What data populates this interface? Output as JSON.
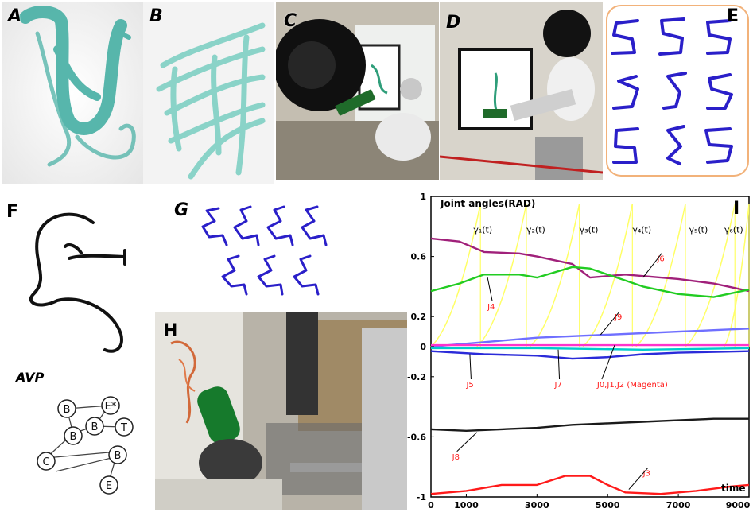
{
  "panels": {
    "a": "A",
    "b": "B",
    "c": "C",
    "d": "D",
    "e": "E",
    "f": "F",
    "g": "G",
    "h": "H",
    "i": "I"
  },
  "avp": {
    "title": "AVP",
    "nodes": [
      "B",
      "E*",
      "B",
      "T",
      "B",
      "C",
      "B",
      "E"
    ]
  },
  "colors": {
    "stroke_teal": "#4fb3a8",
    "stroke_blue": "#2a1fc9",
    "e_border": "#f2b27a",
    "magenta": "#a0207a",
    "green": "#22cc22",
    "black": "#1a1a1a",
    "red": "#ff1a1a",
    "yellow": "#ffff66",
    "light_blue": "#6f6fff",
    "blue": "#2b2bd9",
    "cyan": "#00cccc",
    "pink": "#ff33cc"
  },
  "chart_data": {
    "type": "line",
    "title": "Joint angles(RAD)",
    "xlabel": "time",
    "ylabel": "",
    "xlim": [
      0,
      9000
    ],
    "ylim": [
      -1,
      1
    ],
    "x_ticks": [
      "0",
      "1000",
      "3000",
      "5000",
      "7000",
      "9000"
    ],
    "y_ticks": [
      "1",
      "0.6",
      "0.2",
      "0",
      "-0.2",
      "-0.6",
      "-1"
    ],
    "gamma_labels": [
      "γ₁(t)",
      "γ₂(t)",
      "γ₃(t)",
      "γ₄(t)",
      "γ₅(t)",
      "γ₆(t)"
    ],
    "annotations": [
      "J6",
      "J4",
      "J9",
      "J5",
      "J7",
      "J0,J1,J2 (Magenta)",
      "J8",
      "J3"
    ],
    "series": [
      {
        "name": "J6",
        "color": "#a0207a",
        "x": [
          0,
          800,
          1500,
          2500,
          3000,
          4000,
          4500,
          5500,
          6000,
          7000,
          8000,
          9000
        ],
        "y": [
          0.72,
          0.7,
          0.63,
          0.62,
          0.6,
          0.55,
          0.46,
          0.48,
          0.47,
          0.45,
          0.42,
          0.37
        ]
      },
      {
        "name": "J4",
        "color": "#22cc22",
        "x": [
          0,
          800,
          1500,
          2500,
          3000,
          4000,
          4500,
          5500,
          6000,
          7000,
          8000,
          9000
        ],
        "y": [
          0.37,
          0.42,
          0.48,
          0.48,
          0.46,
          0.53,
          0.52,
          0.44,
          0.4,
          0.35,
          0.33,
          0.38
        ]
      },
      {
        "name": "J9",
        "color": "#6f6fff",
        "x": [
          0,
          1000,
          2000,
          3000,
          4000,
          5000,
          6000,
          7000,
          8000,
          9000
        ],
        "y": [
          0.0,
          0.02,
          0.04,
          0.06,
          0.07,
          0.08,
          0.09,
          0.1,
          0.11,
          0.12
        ]
      },
      {
        "name": "J0,J1,J2 (Magenta)",
        "color": "#ff33cc",
        "x": [
          0,
          9000
        ],
        "y": [
          0.01,
          0.01
        ]
      },
      {
        "name": "J7",
        "color": "#00cccc",
        "x": [
          0,
          3000,
          6000,
          9000
        ],
        "y": [
          -0.01,
          -0.01,
          -0.02,
          -0.01
        ]
      },
      {
        "name": "J5",
        "color": "#2b2bd9",
        "x": [
          0,
          1500,
          3000,
          4000,
          5000,
          6000,
          7000,
          9000
        ],
        "y": [
          -0.03,
          -0.05,
          -0.06,
          -0.08,
          -0.07,
          -0.05,
          -0.04,
          -0.03
        ]
      },
      {
        "name": "J8",
        "color": "#1a1a1a",
        "x": [
          0,
          1000,
          2000,
          3000,
          4000,
          5000,
          6000,
          7000,
          8000,
          9000
        ],
        "y": [
          -0.55,
          -0.56,
          -0.55,
          -0.54,
          -0.52,
          -0.51,
          -0.5,
          -0.49,
          -0.48,
          -0.48
        ]
      },
      {
        "name": "J3",
        "color": "#ff1a1a",
        "x": [
          0,
          1000,
          2000,
          3000,
          3800,
          4500,
          5000,
          5500,
          6500,
          7500,
          8500,
          9000
        ],
        "y": [
          -0.98,
          -0.96,
          -0.92,
          -0.92,
          -0.86,
          -0.86,
          -0.92,
          -0.97,
          -0.98,
          -0.96,
          -0.93,
          -0.92
        ]
      }
    ]
  }
}
